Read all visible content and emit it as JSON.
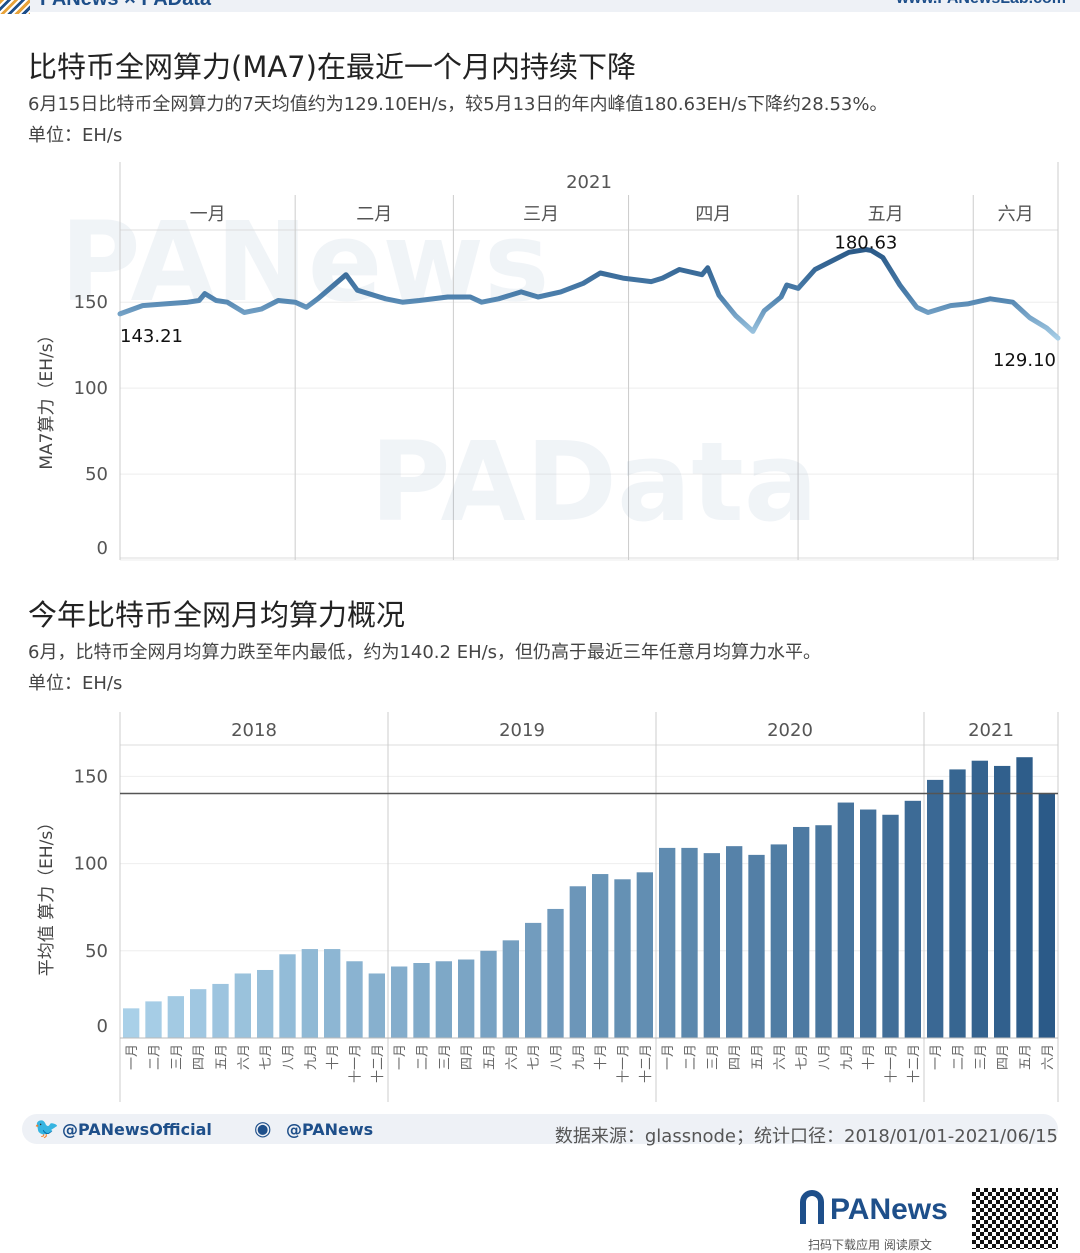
{
  "header": {
    "brand": "PANews × PAData",
    "url": "www.PANewsLab.com"
  },
  "chart1": {
    "title": "比特币全网算力(MA7)在最近一个月内持续下降",
    "subtitle": "6月15日比特币全网算力的7天均值约为129.10EH/s，较5月13日的年内峰值180.63EH/s下降约28.53%。",
    "unit": "单位：EH/s",
    "watermark": "PANews"
  },
  "chart2": {
    "title": "今年比特币全网月均算力概况",
    "subtitle": "6月，比特币全网月均算力跌至年内最低，约为140.2 EH/s，但仍高于最近三年任意月均算力水平。",
    "unit": "单位：EH/s",
    "watermark": "PAData"
  },
  "footer": {
    "twitter": "@PANewsOfficial",
    "weibo": "@PANews",
    "source": "数据来源：glassnode；统计口径：2018/01/01-2021/06/15",
    "logo": "PANews",
    "qr_caption": "扫码下载应用 阅读原文"
  },
  "colors": {
    "dark": "#2b5a88",
    "light": "#a9d0e8",
    "brand": "#1e4f8a"
  },
  "chart_data": [
    {
      "type": "line",
      "year_label": "2021",
      "month_labels": [
        "一月",
        "二月",
        "三月",
        "四月",
        "五月",
        "六月"
      ],
      "month_start_days": [
        0,
        31,
        59,
        90,
        120,
        151,
        166
      ],
      "ylabel": "MA7算力（EH/s）",
      "yticks": [
        0,
        50,
        100,
        150
      ],
      "ylim": [
        0,
        192
      ],
      "x_unit": "day of 2021 (0 = Jan 1)",
      "x": [
        0,
        4,
        8,
        12,
        14,
        15,
        17,
        19,
        22,
        25,
        28,
        31,
        33,
        35,
        40,
        42,
        47,
        50,
        53,
        58,
        62,
        64,
        67,
        71,
        74,
        78,
        82,
        85,
        89,
        94,
        96,
        99,
        103,
        104,
        106,
        109,
        112,
        114,
        117,
        118,
        120,
        123,
        126,
        129,
        132,
        133,
        135,
        138,
        141,
        143,
        147,
        150,
        154,
        158,
        161,
        164,
        166
      ],
      "y": [
        143.21,
        148,
        149,
        150,
        151,
        155,
        151,
        150,
        144,
        146,
        151,
        150,
        147,
        152,
        166,
        157,
        152,
        150,
        151,
        153,
        153,
        150,
        152,
        156,
        153,
        156,
        161,
        167,
        164,
        162,
        164,
        169,
        166,
        170,
        154,
        142,
        133,
        145,
        153,
        160,
        158,
        169,
        174,
        179,
        180.63,
        180,
        176,
        160,
        147,
        144,
        148,
        149,
        152,
        150,
        141,
        135,
        129.1
      ],
      "annotations": [
        {
          "x": 0,
          "label": "143.21"
        },
        {
          "x": 132,
          "label": "180.63"
        },
        {
          "x": 166,
          "label": "129.10"
        }
      ]
    },
    {
      "type": "bar",
      "years": [
        {
          "label": "2018",
          "count": 12
        },
        {
          "label": "2019",
          "count": 12
        },
        {
          "label": "2020",
          "count": 12
        },
        {
          "label": "2021",
          "count": 6
        }
      ],
      "categories": [
        "一月",
        "二月",
        "三月",
        "四月",
        "五月",
        "六月",
        "七月",
        "八月",
        "九月",
        "十月",
        "十一月",
        "十二月",
        "一月",
        "二月",
        "三月",
        "四月",
        "五月",
        "六月",
        "七月",
        "八月",
        "九月",
        "十月",
        "十一月",
        "十二月",
        "一月",
        "二月",
        "三月",
        "四月",
        "五月",
        "六月",
        "七月",
        "八月",
        "九月",
        "十月",
        "十一月",
        "十二月",
        "一月",
        "二月",
        "三月",
        "四月",
        "五月",
        "六月"
      ],
      "values": [
        17,
        21,
        24,
        28,
        31,
        37,
        39,
        48,
        51,
        51,
        44,
        37,
        41,
        43,
        44,
        45,
        50,
        56,
        66,
        74,
        87,
        94,
        91,
        95,
        109,
        109,
        106,
        110,
        105,
        111,
        121,
        122,
        135,
        131,
        128,
        136,
        148,
        154,
        159,
        156,
        161,
        140.2
      ],
      "reference_line": 140.2,
      "ylabel": "平均值 算力（EH/s）",
      "yticks": [
        0,
        50,
        100,
        150
      ],
      "ylim": [
        0,
        168
      ]
    }
  ]
}
